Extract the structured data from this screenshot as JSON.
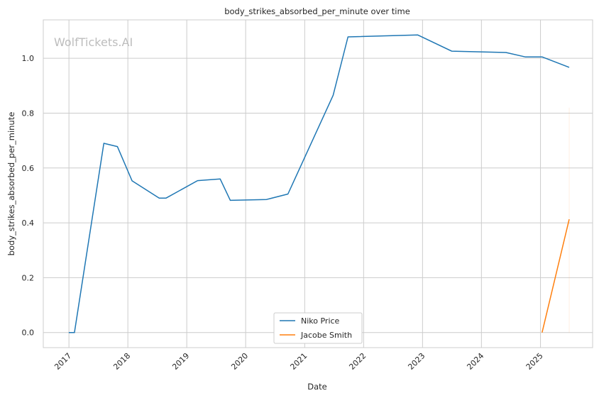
{
  "chart_data": {
    "type": "line",
    "title": "body_strikes_absorbed_per_minute over time",
    "xlabel": "Date",
    "ylabel": "body_strikes_absorbed_per_minute",
    "watermark": "WolfTickets.AI",
    "x_ticks": [
      "2017",
      "2018",
      "2019",
      "2020",
      "2021",
      "2022",
      "2023",
      "2024",
      "2025"
    ],
    "y_ticks": [
      "0.0",
      "0.2",
      "0.4",
      "0.6",
      "0.8",
      "1.0"
    ],
    "xlim": [
      "2016-07-26",
      "2025-11-20"
    ],
    "ylim": [
      -0.055,
      1.14
    ],
    "grid": true,
    "legend_position": "bottom-center",
    "series": [
      {
        "name": "Niko Price",
        "color": "#1f77b4",
        "points": [
          [
            "2016-12-31",
            0.0
          ],
          [
            "2017-02-04",
            0.0
          ],
          [
            "2017-08-05",
            0.69
          ],
          [
            "2017-10-28",
            0.678
          ],
          [
            "2018-01-27",
            0.553
          ],
          [
            "2018-07-14",
            0.49
          ],
          [
            "2018-08-25",
            0.49
          ],
          [
            "2019-03-09",
            0.554
          ],
          [
            "2019-07-27",
            0.56
          ],
          [
            "2019-09-28",
            0.482
          ],
          [
            "2020-05-09",
            0.485
          ],
          [
            "2020-09-19",
            0.505
          ],
          [
            "2021-06-26",
            0.865
          ],
          [
            "2021-09-26",
            1.078
          ],
          [
            "2022-12-03",
            1.085
          ],
          [
            "2023-07-01",
            1.026
          ],
          [
            "2024-06-01",
            1.021
          ],
          [
            "2024-09-28",
            1.005
          ],
          [
            "2025-01-11",
            1.005
          ],
          [
            "2025-06-28",
            0.967
          ]
        ]
      },
      {
        "name": "Jacobe Smith",
        "color": "#ff7f0e",
        "points": [
          [
            "2025-01-11",
            0.0
          ],
          [
            "2025-06-28",
            0.413
          ]
        ]
      }
    ]
  }
}
